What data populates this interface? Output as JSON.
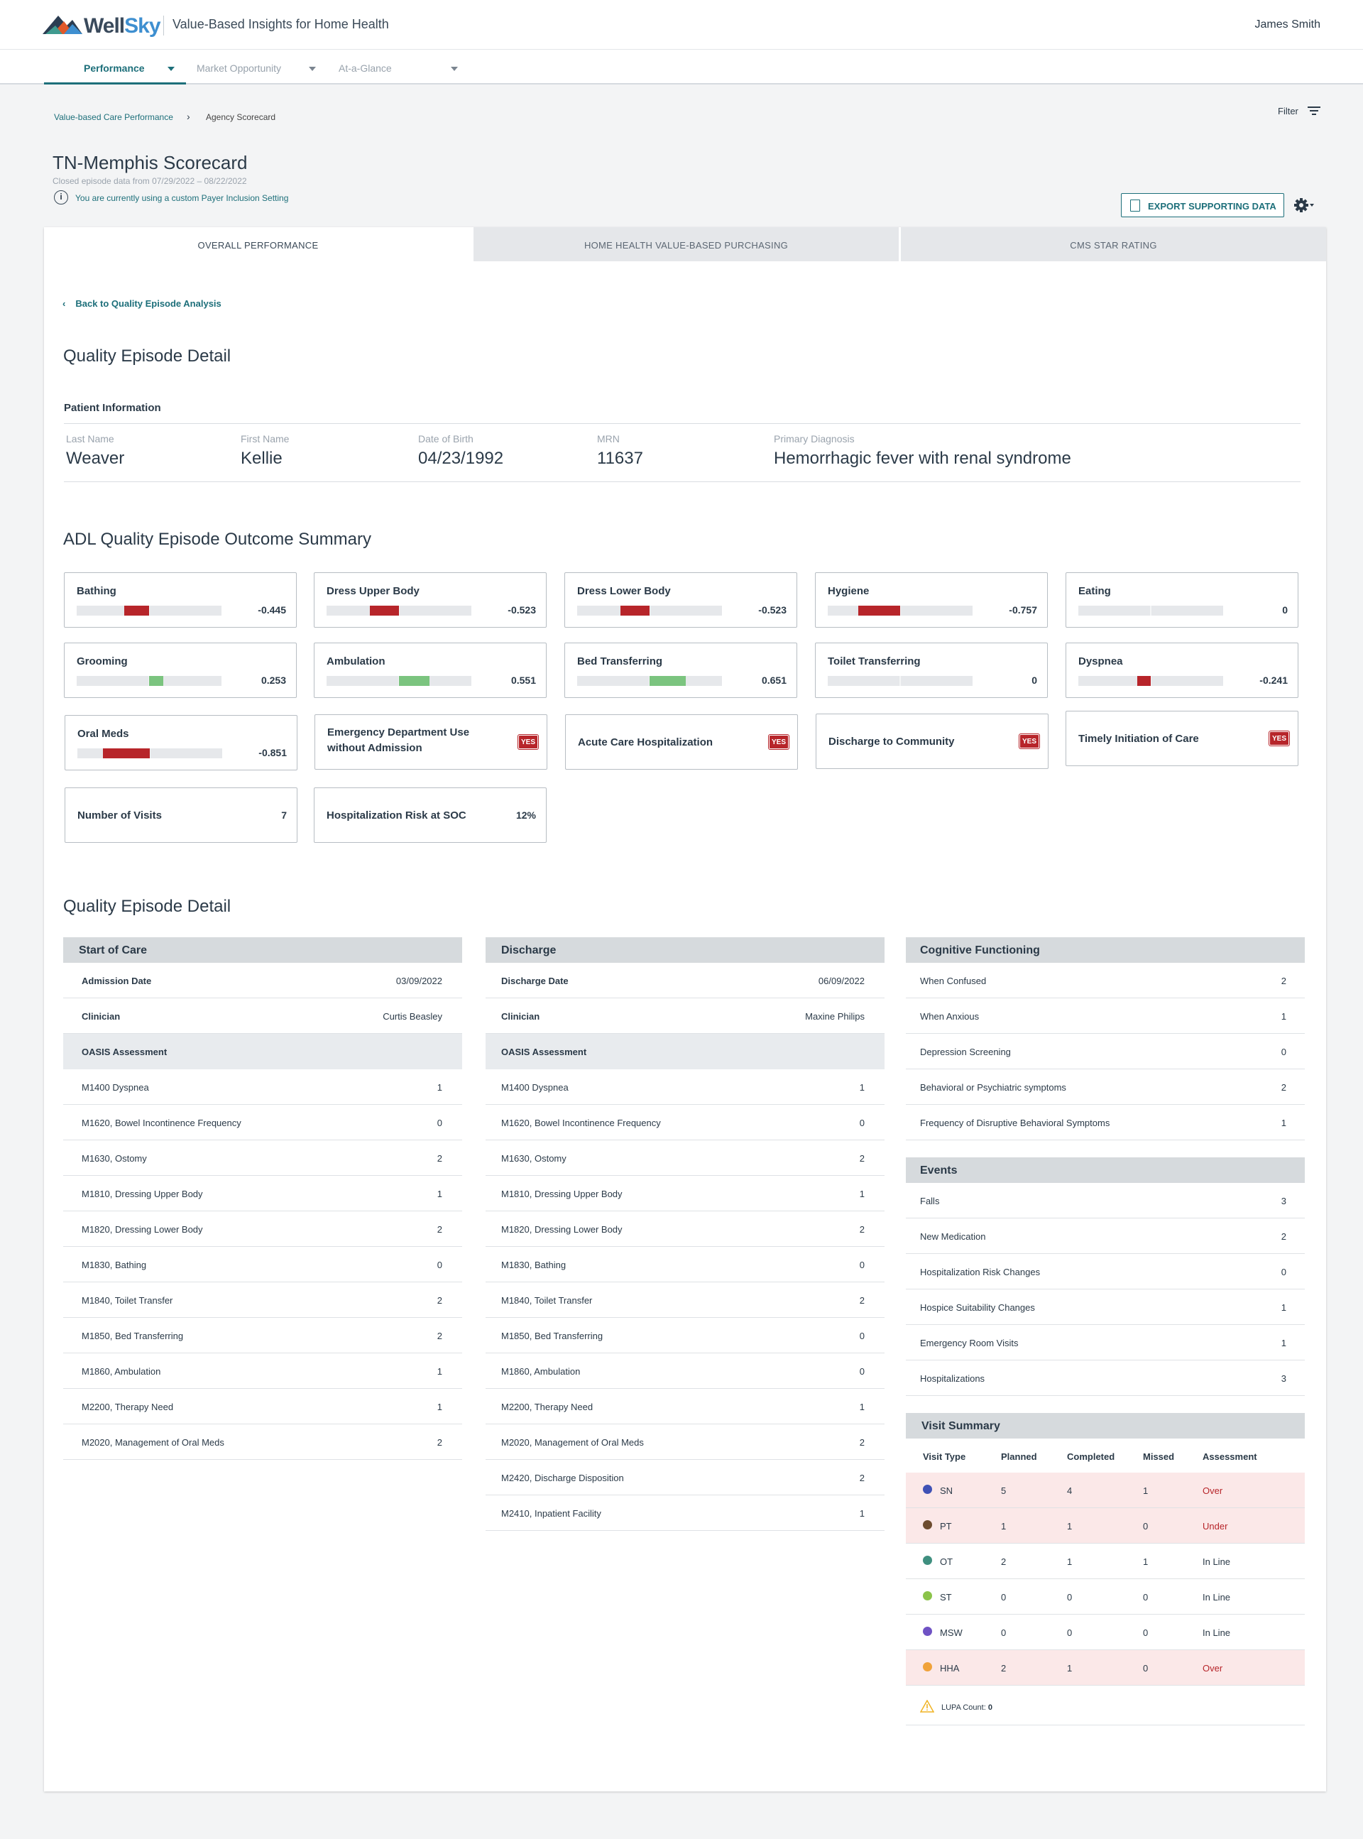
{
  "header": {
    "logo_word_1": "Well",
    "logo_word_2": "Sky",
    "app_title": "Value-Based Insights for Home Health",
    "user_name": "James Smith"
  },
  "nav": {
    "items": [
      "Performance",
      "Market Opportunity",
      "At-a-Glance"
    ]
  },
  "breadcrumb": {
    "parent": "Value-based Care Performance",
    "current": "Agency Scorecard"
  },
  "filter_label": "Filter",
  "page": {
    "title": "TN-Memphis Scorecard",
    "subtitle": "Closed episode data from 07/29/2022 – 08/22/2022",
    "payer_notice": "You are currently using a custom Payer Inclusion Setting",
    "export_label": "EXPORT SUPPORTING DATA"
  },
  "tabs": [
    "OVERALL PERFORMANCE",
    "HOME HEALTH VALUE-BASED PURCHASING",
    "CMS STAR RATING"
  ],
  "back_link": "Back to Quality Episode Analysis",
  "detail_title": "Quality Episode Detail",
  "patient": {
    "section_label": "Patient Information",
    "fields": [
      {
        "label": "Last Name",
        "value": "Weaver"
      },
      {
        "label": "First Name",
        "value": "Kellie"
      },
      {
        "label": "Date of Birth",
        "value": "04/23/1992"
      },
      {
        "label": "MRN",
        "value": "11637"
      },
      {
        "label": "Primary Diagnosis",
        "value": "Hemorrhagic fever with renal syndrome"
      }
    ]
  },
  "adl": {
    "title": "ADL Quality Episode Outcome Summary",
    "colors": {
      "negative": "#b7252a",
      "positive": "#7bc47f"
    },
    "metrics": [
      {
        "name": "Bathing",
        "value": "-0.445",
        "score": -0.445
      },
      {
        "name": "Dress Upper Body",
        "value": "-0.523",
        "score": -0.523
      },
      {
        "name": "Dress Lower Body",
        "value": "-0.523",
        "score": -0.523
      },
      {
        "name": "Hygiene",
        "value": "-0.757",
        "score": -0.757
      },
      {
        "name": "Eating",
        "value": "0",
        "score": 0
      },
      {
        "name": "Grooming",
        "value": "0.253",
        "score": 0.253
      },
      {
        "name": "Ambulation",
        "value": "0.551",
        "score": 0.551
      },
      {
        "name": "Bed Transferring",
        "value": "0.651",
        "score": 0.651
      },
      {
        "name": "Toilet Transferring",
        "value": "0",
        "score": 0
      },
      {
        "name": "Dyspnea",
        "value": "-0.241",
        "score": -0.241
      },
      {
        "name": "Oral Meds",
        "value": "-0.851",
        "score": -0.851
      }
    ],
    "flags": [
      {
        "name_1": "Emergency Department Use",
        "name_2": "without Admission",
        "badge": "YES"
      },
      {
        "name_1": "Acute Care Hospitalization",
        "name_2": "",
        "badge": "YES"
      },
      {
        "name_1": "Discharge to Community",
        "name_2": "",
        "badge": "YES"
      },
      {
        "name_1": "Timely Initiation of Care",
        "name_2": "",
        "badge": "YES"
      }
    ],
    "plain": [
      {
        "name": "Number of Visits",
        "value": "7"
      },
      {
        "name": "Hospitalization Risk at SOC",
        "value": "12%"
      }
    ]
  },
  "soc": {
    "title": "Start of Care",
    "admission_label": "Admission Date",
    "admission_value": "03/09/2022",
    "clinician_label": "Clinician",
    "clinician_value": "Curtis Beasley",
    "oasis_label": "OASIS Assessment",
    "rows": [
      {
        "label": "M1400 Dyspnea",
        "value": "1"
      },
      {
        "label": "M1620, Bowel Incontinence Frequency",
        "value": "0"
      },
      {
        "label": "M1630, Ostomy",
        "value": "2"
      },
      {
        "label": "M1810, Dressing Upper Body",
        "value": "1"
      },
      {
        "label": "M1820, Dressing Lower Body",
        "value": "2"
      },
      {
        "label": "M1830, Bathing",
        "value": "0"
      },
      {
        "label": "M1840, Toilet Transfer",
        "value": "2"
      },
      {
        "label": "M1850, Bed Transferring",
        "value": "2"
      },
      {
        "label": "M1860, Ambulation",
        "value": "1"
      },
      {
        "label": "M2200, Therapy Need",
        "value": "1"
      },
      {
        "label": "M2020, Management of Oral Meds",
        "value": "2"
      }
    ]
  },
  "discharge": {
    "title": "Discharge",
    "date_label": "Discharge Date",
    "date_value": "06/09/2022",
    "clinician_label": "Clinician",
    "clinician_value": "Maxine Philips",
    "oasis_label": "OASIS Assessment",
    "rows": [
      {
        "label": "M1400 Dyspnea",
        "value": "1"
      },
      {
        "label": "M1620, Bowel Incontinence Frequency",
        "value": "0"
      },
      {
        "label": "M1630, Ostomy",
        "value": "2"
      },
      {
        "label": "M1810, Dressing Upper Body",
        "value": "1"
      },
      {
        "label": "M1820, Dressing Lower Body",
        "value": "2"
      },
      {
        "label": "M1830, Bathing",
        "value": "0"
      },
      {
        "label": "M1840, Toilet Transfer",
        "value": "2"
      },
      {
        "label": "M1850, Bed Transferring",
        "value": "0"
      },
      {
        "label": "M1860, Ambulation",
        "value": "0"
      },
      {
        "label": "M2200, Therapy Need",
        "value": "1"
      },
      {
        "label": "M2020, Management of Oral Meds",
        "value": "2"
      },
      {
        "label": "M2420, Discharge Disposition",
        "value": "2"
      },
      {
        "label": "M2410, Inpatient Facility",
        "value": "1"
      }
    ]
  },
  "cognitive": {
    "title": "Cognitive Functioning",
    "rows": [
      {
        "label": "When Confused",
        "value": "2"
      },
      {
        "label": "When Anxious",
        "value": "1"
      },
      {
        "label": "Depression Screening",
        "value": "0"
      },
      {
        "label": "Behavioral or Psychiatric symptoms",
        "value": "2"
      },
      {
        "label": "Frequency of Disruptive Behavioral Symptoms",
        "value": "1"
      }
    ]
  },
  "events": {
    "title": "Events",
    "rows": [
      {
        "label": "Falls",
        "value": "3"
      },
      {
        "label": "New Medication",
        "value": "2"
      },
      {
        "label": "Hospitalization Risk Changes",
        "value": "0"
      },
      {
        "label": "Hospice Suitability Changes",
        "value": "1"
      },
      {
        "label": "Emergency Room Visits",
        "value": "1"
      },
      {
        "label": "Hospitalizations",
        "value": "3"
      }
    ]
  },
  "visit_summary": {
    "title": "Visit Summary",
    "columns": [
      "Visit Type",
      "Planned",
      "Completed",
      "Missed",
      "Assessment"
    ],
    "rows": [
      {
        "type": "SN",
        "planned": "5",
        "completed": "4",
        "missed": "1",
        "assessment": "Over",
        "dot": "#3f51b5",
        "status": "alert"
      },
      {
        "type": "PT",
        "planned": "1",
        "completed": "1",
        "missed": "0",
        "assessment": "Under",
        "dot": "#6d4c2f",
        "status": "alert"
      },
      {
        "type": "OT",
        "planned": "2",
        "completed": "1",
        "missed": "1",
        "assessment": "In Line",
        "dot": "#3f8f7f",
        "status": "ok"
      },
      {
        "type": "ST",
        "planned": "0",
        "completed": "0",
        "missed": "0",
        "assessment": "In Line",
        "dot": "#8bc34a",
        "status": "ok"
      },
      {
        "type": "MSW",
        "planned": "0",
        "completed": "0",
        "missed": "0",
        "assessment": "In Line",
        "dot": "#6f52c4",
        "status": "ok"
      },
      {
        "type": "HHA",
        "planned": "2",
        "completed": "1",
        "missed": "0",
        "assessment": "Over",
        "dot": "#f0a23a",
        "status": "alert"
      }
    ],
    "lupa_label": "LUPA Count:",
    "lupa_value": "0"
  }
}
